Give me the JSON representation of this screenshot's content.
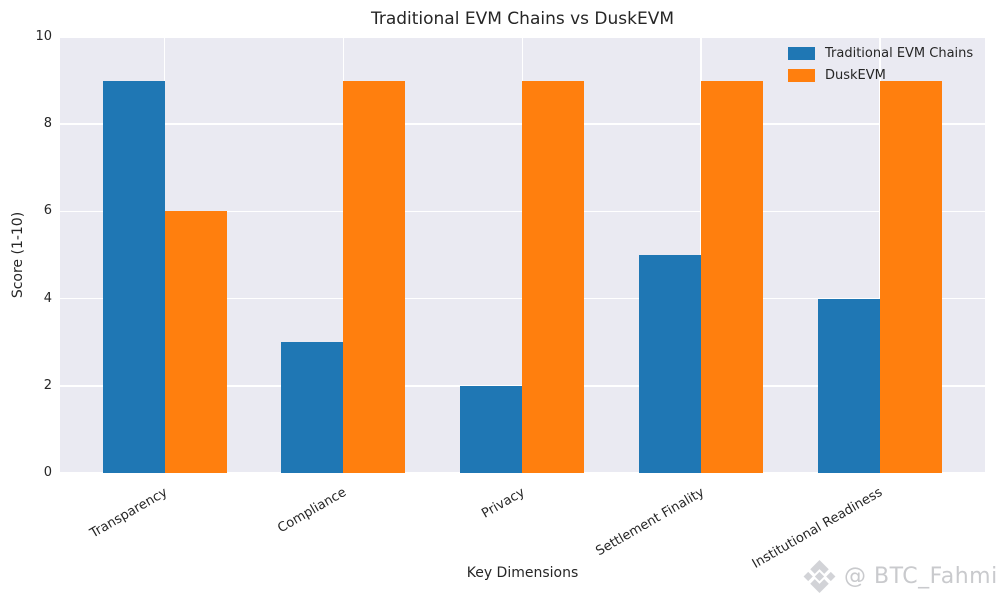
{
  "chart_data": {
    "type": "bar",
    "title": "Traditional EVM Chains vs DuskEVM",
    "categories": [
      "Transparency",
      "Compliance",
      "Privacy",
      "Settlement Finality",
      "Institutional Readiness"
    ],
    "series": [
      {
        "name": "Traditional EVM Chains",
        "color": "#1f77b4",
        "values": [
          9,
          3,
          2,
          5,
          4
        ]
      },
      {
        "name": "DuskEVM",
        "color": "#ff7f0e",
        "values": [
          6,
          9,
          9,
          9,
          9
        ]
      }
    ],
    "xlabel": "Key Dimensions",
    "ylabel": "Score (1-10)",
    "ylim": [
      0,
      10
    ],
    "yticks": [
      0,
      2,
      4,
      6,
      8,
      10
    ],
    "grid": true,
    "legend_position": "upper right",
    "plot_bg_color": "#eaeaf2",
    "grid_color": "#ffffff",
    "text_color": "#262626"
  },
  "watermark": {
    "text": "@ BTC_Fahmi",
    "icon": "binance-diamond-icon",
    "text_color": "#c9cacd",
    "icon_color": "#d2d3d7"
  }
}
